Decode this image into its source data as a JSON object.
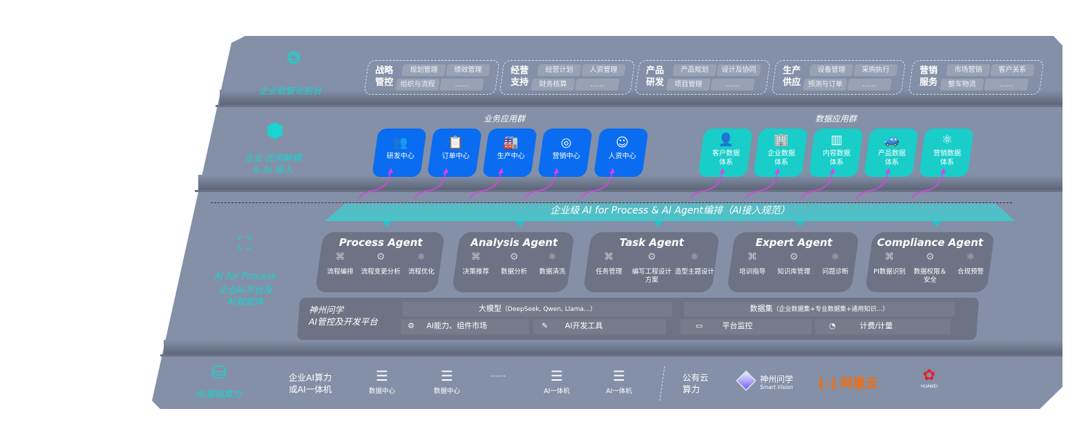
{
  "colors": {
    "panel": "#8390a7",
    "accent_teal": "#19d3d0",
    "business_blue": "#0a6cf0",
    "data_cyan": "#19cdc9",
    "curve_magenta": "#e040e8",
    "aliyun": "#ff6a00",
    "huawei": "#e3202a"
  },
  "front": {
    "label": "企业数智化前台",
    "icon": "brain-icon",
    "groups": [
      {
        "title": "战略管控",
        "items": [
          "规划管理",
          "绩效管理",
          "组织与流程",
          "……"
        ]
      },
      {
        "title": "经营支持",
        "items": [
          "经营计划",
          "人资管理",
          "财务核算",
          "……"
        ]
      },
      {
        "title": "产品研发",
        "items": [
          "产品规划",
          "设计及协同",
          "项目管理",
          "……"
        ]
      },
      {
        "title": "生产供应",
        "items": [
          "设备管理",
          "采购执行",
          "预测与订单",
          "……"
        ]
      },
      {
        "title": "营销服务",
        "items": [
          "市场营销",
          "客户关系",
          "整车物流",
          "……"
        ]
      }
    ]
  },
  "apps": {
    "label": "企业 应用解耦\n& AI 侵入",
    "icon": "molecule-icon",
    "business_title": "业务应用群",
    "business": [
      {
        "label": "研发中心",
        "icon": "people-icon"
      },
      {
        "label": "订单中心",
        "icon": "clipboard-icon"
      },
      {
        "label": "生产中心",
        "icon": "factory-icon"
      },
      {
        "label": "营销中心",
        "icon": "target-icon"
      },
      {
        "label": "人资中心",
        "icon": "user-icon"
      }
    ],
    "data_title": "数据应用群",
    "data": [
      {
        "label": "客户数据\n体系",
        "icon": "person-icon"
      },
      {
        "label": "企业数据\n体系",
        "icon": "building-icon"
      },
      {
        "label": "内容数据\n体系",
        "icon": "books-icon"
      },
      {
        "label": "产品数据\n体系",
        "icon": "car-icon"
      },
      {
        "label": "营销数据\n体系",
        "icon": "atom-icon"
      }
    ]
  },
  "ai": {
    "label_en": "AI for Process",
    "label_cn": "企业AI平台及\nAI智能体",
    "icon": "face-scan-icon",
    "banner": "企业级 AI for Process & AI Agent编排（AI接入规范）",
    "agents": [
      {
        "name": "Process Agent",
        "items": [
          "流程编排",
          "流程变更分析",
          "流程优化"
        ]
      },
      {
        "name": "Analysis Agent",
        "items": [
          "决策推荐",
          "数据分析",
          "数据清洗"
        ]
      },
      {
        "name": "Task Agent",
        "items": [
          "任务管理",
          "编写工程设计方案",
          "造型主题设计"
        ]
      },
      {
        "name": "Expert Agent",
        "items": [
          "培训指导",
          "知识库管理",
          "问题诊断"
        ]
      },
      {
        "name": "Compliance Agent",
        "items": [
          "PI数据识别",
          "数据权限＆\n安全",
          "合规预警"
        ]
      }
    ],
    "platform": {
      "title": "神州问学\nAI管控及开发平台",
      "model": "大模型",
      "model_note": "（DeepSeek, Qwen, Llama…）",
      "dataset": "数据集",
      "dataset_note": "（企业数据集+专业数据集+通用知识…）",
      "market": "AI能力、组件市场",
      "devtools": "AI开发工具",
      "monitor": "平台监控",
      "billing": "计费/计量"
    }
  },
  "infra": {
    "label": "AI基础算力",
    "icon": "database-icon",
    "enterprise": "企业AI算力\n或AI一体机",
    "items": [
      "数据中心",
      "数据中心",
      "AI一体机",
      "AI一体机"
    ],
    "ellipsis": "……",
    "public": "公有云\n算力",
    "vendors": {
      "smartvision_cn": "神州问学",
      "smartvision_en": "Smart Vision",
      "aliyun": "阿里云",
      "huawei": "HUAWEI"
    }
  }
}
